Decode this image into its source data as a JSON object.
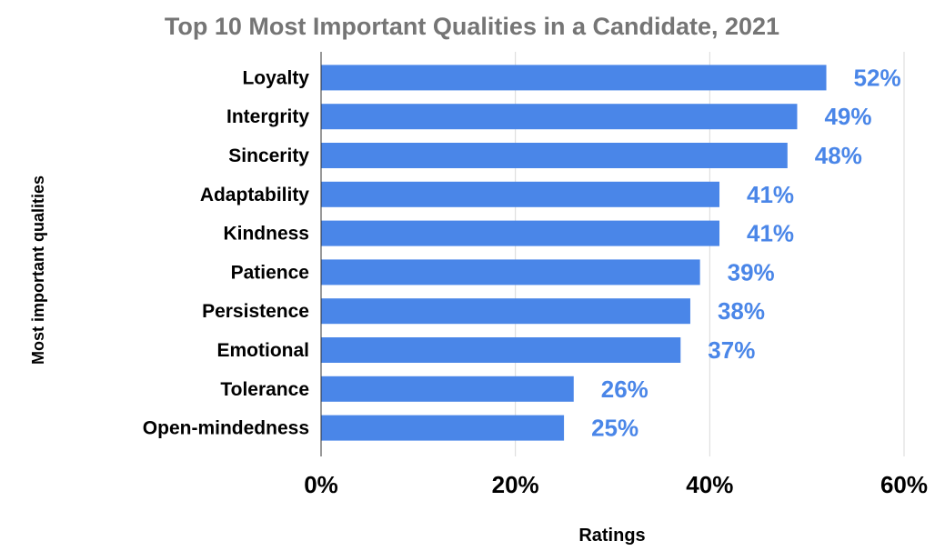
{
  "colors": {
    "bar": "#4a86e8",
    "value_label": "#4a86e8",
    "grid": "#d9d9d9",
    "axis": "#333333"
  },
  "chart_data": {
    "type": "bar",
    "orientation": "horizontal",
    "title": "Top 10 Most Important Qualities in a Candidate, 2021",
    "xlabel": "Ratings",
    "ylabel": "Most important qualities",
    "categories": [
      "Loyalty",
      "Intergrity",
      "Sincerity",
      "Adaptability",
      "Kindness",
      "Patience",
      "Persistence",
      "Emotional",
      "Tolerance",
      "Open-mindedness"
    ],
    "values": [
      52,
      49,
      48,
      41,
      41,
      39,
      38,
      37,
      26,
      25
    ],
    "value_labels": [
      "52%",
      "49%",
      "48%",
      "41%",
      "41%",
      "39%",
      "38%",
      "37%",
      "26%",
      "25%"
    ],
    "xlim": [
      0,
      60
    ],
    "xticks": [
      0,
      20,
      40,
      60
    ],
    "xtick_labels": [
      "0%",
      "20%",
      "40%",
      "60%"
    ],
    "grid": true,
    "legend": "none"
  }
}
